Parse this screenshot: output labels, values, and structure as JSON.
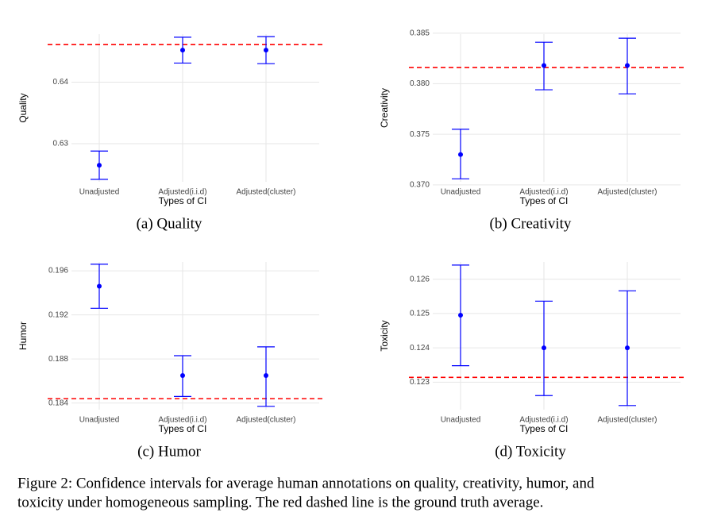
{
  "chart_data": [
    {
      "type": "errorbar",
      "title": "(a) Quality",
      "y_label": "Quality",
      "x_label": "Types of CI",
      "categories": [
        "Unadjusted",
        "Adjusted(i.i.d)",
        "Adjusted(cluster)"
      ],
      "values": [
        0.6265,
        0.6452,
        0.6452
      ],
      "lower": [
        0.6242,
        0.6431,
        0.643
      ],
      "upper": [
        0.6288,
        0.6473,
        0.6474
      ],
      "color": "#0000ff",
      "reference_line": 0.6461,
      "reference_color": "#ff0000",
      "ylim": [
        0.6238,
        0.6478
      ],
      "yticks": [
        0.63,
        0.64
      ],
      "grid": true
    },
    {
      "type": "errorbar",
      "title": "(b) Creativity",
      "y_label": "Creativity",
      "x_label": "Types of CI",
      "categories": [
        "Unadjusted",
        "Adjusted(i.i.d)",
        "Adjusted(cluster)"
      ],
      "values": [
        0.373,
        0.3818,
        0.3818
      ],
      "lower": [
        0.3706,
        0.3794,
        0.379
      ],
      "upper": [
        0.3755,
        0.3841,
        0.3845
      ],
      "color": "#0000ff",
      "reference_line": 0.3816,
      "reference_color": "#ff0000",
      "ylim": [
        0.3703,
        0.3849
      ],
      "yticks": [
        {
          "value": 0.37,
          "label": "0.370"
        },
        0.375,
        {
          "value": 0.38,
          "label": "0.380"
        },
        0.385
      ],
      "grid": true
    },
    {
      "type": "errorbar",
      "title": "(c) Humor",
      "y_label": "Humor",
      "x_label": "Types of CI",
      "categories": [
        "Unadjusted",
        "Adjusted(i.i.d)",
        "Adjusted(cluster)"
      ],
      "values": [
        0.1946,
        0.1865,
        0.1865
      ],
      "lower": [
        0.1926,
        0.1846,
        0.1837
      ],
      "upper": [
        0.1966,
        0.1883,
        0.1891
      ],
      "color": "#0000ff",
      "reference_line": 0.1844,
      "reference_color": "#ff0000",
      "ylim": [
        0.1834,
        0.1968
      ],
      "yticks": [
        0.184,
        0.188,
        0.192,
        0.196
      ],
      "grid": true
    },
    {
      "type": "errorbar",
      "title": "(d) Toxicity",
      "y_label": "Toxicity",
      "x_label": "Types of CI",
      "categories": [
        "Unadjusted",
        "Adjusted(i.i.d)",
        "Adjusted(cluster)"
      ],
      "values": [
        0.12495,
        0.124,
        0.124
      ],
      "lower": [
        0.12348,
        0.12261,
        0.12232
      ],
      "upper": [
        0.12641,
        0.12536,
        0.12566
      ],
      "color": "#0000ff",
      "reference_line": 0.12314,
      "reference_color": "#ff0000",
      "ylim": [
        0.1222,
        0.1265
      ],
      "yticks": [
        0.123,
        0.124,
        0.125,
        0.126
      ],
      "grid": true
    }
  ],
  "caption": [
    "Figure 2: Confidence intervals for average human annotations on quality, creativity, humor, and",
    "toxicity under homogeneous sampling. The red dashed line is the ground truth average."
  ]
}
